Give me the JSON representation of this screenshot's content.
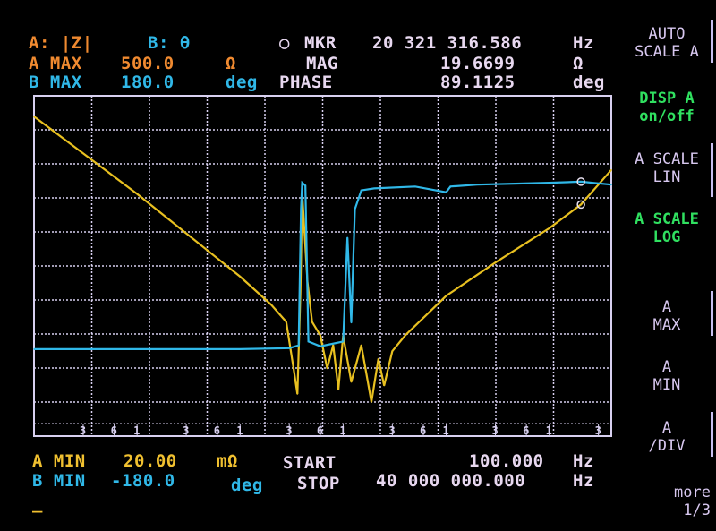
{
  "header": {
    "trace_a_label": "A: |Z|",
    "trace_b_label": "B: θ",
    "marker_symbol": "○",
    "marker_label": "MKR",
    "marker_freq": "20 321 316.586",
    "marker_freq_unit": "Hz",
    "mag_label": "MAG",
    "mag_value": "19.6699",
    "mag_unit": "Ω",
    "phase_label": "PHASE",
    "phase_value": "89.1125",
    "phase_unit": "deg",
    "a_max_label": "A MAX",
    "a_max_value": "500.0",
    "a_max_unit": "Ω",
    "b_max_label": "B MAX",
    "b_max_value": "180.0",
    "b_max_unit": "deg"
  },
  "footer": {
    "a_min_label": "A MIN",
    "a_min_value": "20.00",
    "a_min_unit": "mΩ",
    "b_min_label": "B MIN",
    "b_min_value": "-180.0",
    "b_min_unit": "deg",
    "start_label": "START",
    "start_value": "100.000",
    "start_unit": "Hz",
    "stop_label": "STOP",
    "stop_value": "40 000 000.000",
    "stop_unit": "Hz",
    "cursor": "_"
  },
  "softkeys": [
    {
      "line1": "AUTO",
      "line2": "SCALE A",
      "active": false
    },
    {
      "line1": "DISP A",
      "line2": "on/off",
      "active": true
    },
    {
      "line1": "A SCALE",
      "line2": "LIN",
      "active": false
    },
    {
      "line1": "A SCALE",
      "line2": "LOG",
      "active": true
    },
    {
      "line1": "A",
      "line2": "MAX",
      "active": false
    },
    {
      "line1": "A",
      "line2": "MIN",
      "active": false
    },
    {
      "line1": "A",
      "line2": "/DIV",
      "active": false
    },
    {
      "line1": "more",
      "line2": "1/3",
      "active": false
    }
  ],
  "colors": {
    "trace_a": "#e8c020",
    "trace_b": "#30b8e8",
    "grid": "#d8d0f0",
    "active_key": "#30e060"
  },
  "chart_data": {
    "type": "line",
    "x_scale": "log",
    "xlim": [
      100,
      40000000
    ],
    "x_tick_labels": [
      "3",
      "6",
      "1",
      "3",
      "6",
      "1",
      "3",
      "6",
      "1",
      "3",
      "6",
      "1",
      "3",
      "6",
      "1",
      "3"
    ],
    "x_ticks": [
      300,
      600,
      1000,
      3000,
      6000,
      10000,
      30000,
      60000,
      100000,
      300000,
      600000,
      1000000,
      3000000,
      6000000,
      10000000,
      30000000
    ],
    "grid": true,
    "series": [
      {
        "trace": "A",
        "quantity": "|Z|",
        "unit": "Ω",
        "y_scale": "log",
        "ylim": [
          0.02,
          500
        ],
        "points": [
          [
            100,
            270
          ],
          [
            1000,
            27
          ],
          [
            10000,
            2.3
          ],
          [
            20000,
            1.0
          ],
          [
            28000,
            0.6
          ],
          [
            33000,
            0.15
          ],
          [
            36000,
            0.07
          ],
          [
            38500,
            1.5
          ],
          [
            40000,
            28
          ],
          [
            45000,
            2
          ],
          [
            50000,
            0.6
          ],
          [
            60000,
            0.4
          ],
          [
            70000,
            0.15
          ],
          [
            80000,
            0.3
          ],
          [
            90000,
            0.08
          ],
          [
            100000,
            0.4
          ],
          [
            120000,
            0.1
          ],
          [
            150000,
            0.3
          ],
          [
            188000,
            0.055
          ],
          [
            220000,
            0.2
          ],
          [
            250000,
            0.09
          ],
          [
            300000,
            0.25
          ],
          [
            400000,
            0.4
          ],
          [
            1000000,
            1.3
          ],
          [
            3000000,
            3.5
          ],
          [
            10000000,
            9.7
          ],
          [
            20321316.586,
            19.67
          ],
          [
            40000000,
            55
          ]
        ]
      },
      {
        "trace": "B",
        "quantity": "θ",
        "unit": "deg",
        "y_scale": "linear",
        "ylim": [
          -180,
          180
        ],
        "points": [
          [
            100,
            -88
          ],
          [
            10000,
            -88
          ],
          [
            30000,
            -87
          ],
          [
            37000,
            -84
          ],
          [
            39000,
            60
          ],
          [
            40000,
            88
          ],
          [
            43000,
            85
          ],
          [
            46000,
            -80
          ],
          [
            60000,
            -85
          ],
          [
            100000,
            -80
          ],
          [
            110000,
            30
          ],
          [
            120000,
            -60
          ],
          [
            130000,
            60
          ],
          [
            150000,
            80
          ],
          [
            200000,
            82
          ],
          [
            500000,
            84
          ],
          [
            1000000,
            78
          ],
          [
            1100000,
            84
          ],
          [
            2000000,
            86
          ],
          [
            10000000,
            88
          ],
          [
            20321316.586,
            89.11
          ],
          [
            40000000,
            86
          ]
        ]
      }
    ],
    "marker": {
      "freq": 20321316.586,
      "mag": 19.6699,
      "phase": 89.1125
    }
  }
}
